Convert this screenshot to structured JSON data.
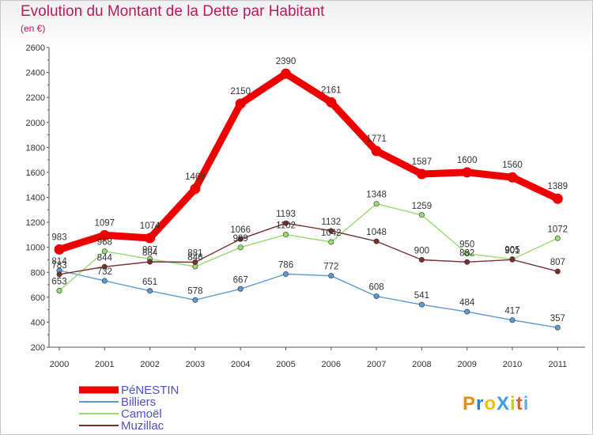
{
  "header": {
    "title": "Evolution du Montant de la Dette par Habitant",
    "subtitle": "(en €)"
  },
  "brand": "ProXiti",
  "chart_data": {
    "type": "line",
    "title": "Evolution du Montant de la Dette par Habitant",
    "subtitle": "(en €)",
    "xlabel": "",
    "ylabel": "",
    "ylim": [
      200,
      2600
    ],
    "yticks": [
      200,
      400,
      600,
      800,
      1000,
      1200,
      1400,
      1600,
      1800,
      2000,
      2200,
      2400,
      2600
    ],
    "x": [
      "2000",
      "2001",
      "2002",
      "2003",
      "2004",
      "2005",
      "2006",
      "2007",
      "2008",
      "2009",
      "2010",
      "2011"
    ],
    "grid": false,
    "legend_position": "bottom-left",
    "series": [
      {
        "name": "PéNESTIN",
        "color": "#ee0000",
        "emphasis": true,
        "values": [
          983,
          1097,
          1074,
          1468,
          2150,
          2390,
          2161,
          1771,
          1587,
          1600,
          1560,
          1389
        ]
      },
      {
        "name": "Billiers",
        "color": "#5b9bd5",
        "values": [
          814,
          732,
          651,
          578,
          667,
          786,
          772,
          608,
          541,
          484,
          417,
          357
        ]
      },
      {
        "name": "Camoël",
        "color": "#96dc6e",
        "values": [
          653,
          968,
          907,
          846,
          999,
          1102,
          1042,
          1348,
          1259,
          950,
          905,
          1072
        ]
      },
      {
        "name": "Muzillac",
        "color": "#7a2f2f",
        "values": [
          783,
          844,
          884,
          881,
          1066,
          1193,
          1132,
          1048,
          900,
          882,
          901,
          807
        ]
      }
    ]
  }
}
